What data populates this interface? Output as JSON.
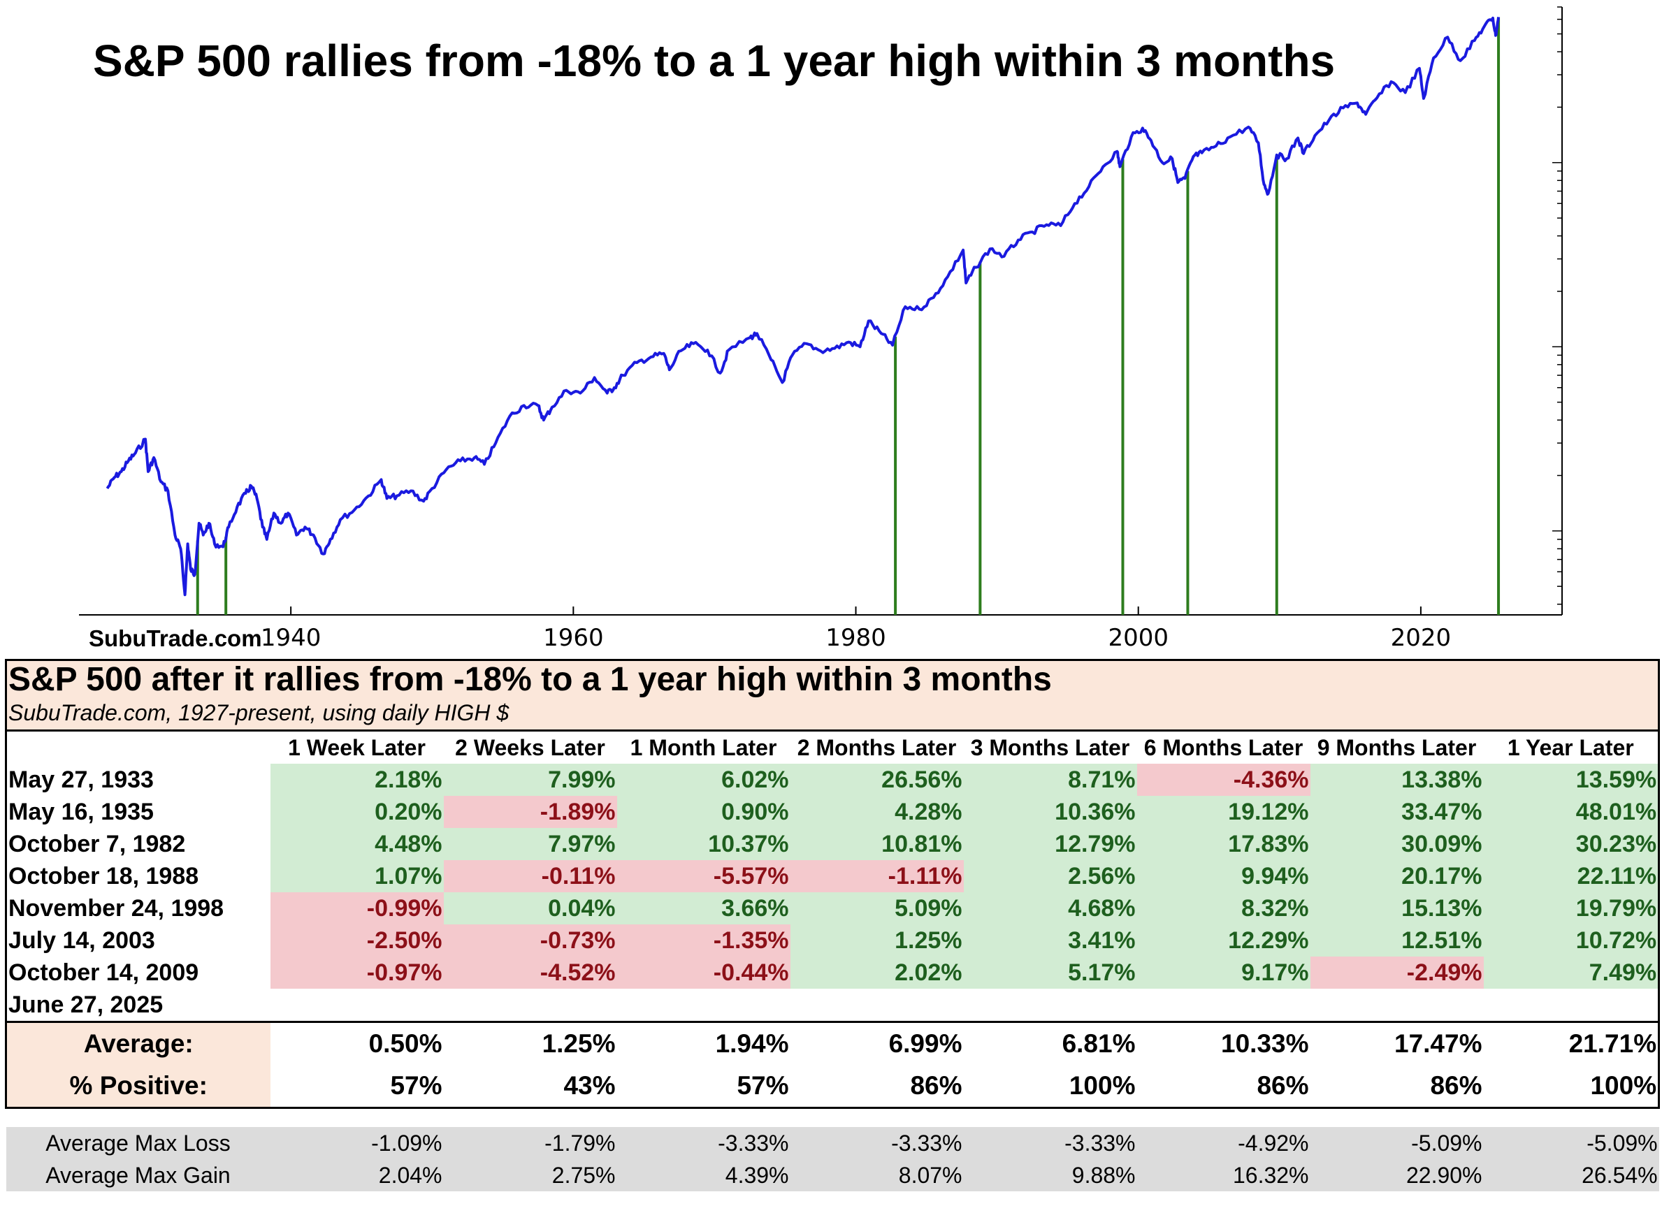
{
  "chart": {
    "title": "S&P 500 rallies from -18% to a 1 year high within 3 months",
    "watermark": "SubuTrade.com",
    "line_color": "#1a1adf",
    "signal_color": "#2e7d1e"
  },
  "chart_data": {
    "type": "line",
    "title": "S&P 500 rallies from -18% to a 1 year high within 3 months",
    "xlabel": "",
    "ylabel": "",
    "x_ticks": [
      1940,
      1960,
      1980,
      2000,
      2020
    ],
    "xlim": [
      1925.0,
      2030.0
    ],
    "y_scale": "log",
    "ylim": [
      3.5,
      7000
    ],
    "grid": false,
    "series": [
      {
        "points": [
          [
            1927.0,
            17.0
          ],
          [
            1927.5,
            19.5
          ],
          [
            1928.0,
            21.0
          ],
          [
            1928.5,
            24.0
          ],
          [
            1929.0,
            26.5
          ],
          [
            1929.7,
            31.5
          ],
          [
            1929.9,
            21.0
          ],
          [
            1930.3,
            25.0
          ],
          [
            1930.8,
            18.5
          ],
          [
            1931.3,
            16.5
          ],
          [
            1931.8,
            9.5
          ],
          [
            1932.2,
            8.0
          ],
          [
            1932.5,
            4.5
          ],
          [
            1932.7,
            8.5
          ],
          [
            1932.9,
            6.2
          ],
          [
            1933.2,
            5.8
          ],
          [
            1933.5,
            11.0
          ],
          [
            1933.8,
            9.5
          ],
          [
            1934.2,
            11.0
          ],
          [
            1934.6,
            8.5
          ],
          [
            1935.2,
            8.2
          ],
          [
            1935.6,
            10.5
          ],
          [
            1936.2,
            13.5
          ],
          [
            1936.8,
            16.0
          ],
          [
            1937.2,
            17.5
          ],
          [
            1937.6,
            15.0
          ],
          [
            1938.0,
            10.5
          ],
          [
            1938.3,
            9.0
          ],
          [
            1938.8,
            12.5
          ],
          [
            1939.3,
            11.0
          ],
          [
            1939.8,
            12.5
          ],
          [
            1940.4,
            9.5
          ],
          [
            1941.0,
            10.5
          ],
          [
            1941.6,
            9.5
          ],
          [
            1942.3,
            7.5
          ],
          [
            1942.8,
            9.0
          ],
          [
            1943.5,
            11.5
          ],
          [
            1944.5,
            13.0
          ],
          [
            1945.5,
            15.5
          ],
          [
            1946.4,
            19.0
          ],
          [
            1946.8,
            15.0
          ],
          [
            1947.5,
            15.5
          ],
          [
            1948.5,
            16.5
          ],
          [
            1949.4,
            14.5
          ],
          [
            1950.0,
            17.0
          ],
          [
            1951.0,
            21.5
          ],
          [
            1952.0,
            24.0
          ],
          [
            1953.0,
            25.0
          ],
          [
            1953.7,
            23.0
          ],
          [
            1954.5,
            30.0
          ],
          [
            1955.5,
            42.0
          ],
          [
            1956.5,
            48.0
          ],
          [
            1957.5,
            48.0
          ],
          [
            1957.9,
            40.0
          ],
          [
            1958.5,
            47.0
          ],
          [
            1959.5,
            58.0
          ],
          [
            1960.5,
            56.0
          ],
          [
            1961.5,
            68.0
          ],
          [
            1962.4,
            56.0
          ],
          [
            1962.9,
            60.0
          ],
          [
            1963.5,
            70.0
          ],
          [
            1964.5,
            82.0
          ],
          [
            1965.5,
            88.0
          ],
          [
            1966.4,
            92.0
          ],
          [
            1966.8,
            75.0
          ],
          [
            1967.6,
            95.0
          ],
          [
            1968.5,
            104.0
          ],
          [
            1969.5,
            96.0
          ],
          [
            1970.4,
            72.0
          ],
          [
            1971.0,
            96.0
          ],
          [
            1972.5,
            112.0
          ],
          [
            1973.0,
            118.0
          ],
          [
            1974.0,
            85.0
          ],
          [
            1974.8,
            64.0
          ],
          [
            1975.5,
            90.0
          ],
          [
            1976.5,
            104.0
          ],
          [
            1977.5,
            95.0
          ],
          [
            1978.5,
            98.0
          ],
          [
            1979.5,
            106.0
          ],
          [
            1980.3,
            100.0
          ],
          [
            1980.9,
            138.0
          ],
          [
            1981.8,
            118.0
          ],
          [
            1982.6,
            102.0
          ],
          [
            1983.5,
            165.0
          ],
          [
            1984.5,
            160.0
          ],
          [
            1985.5,
            185.0
          ],
          [
            1986.5,
            240.0
          ],
          [
            1987.6,
            335.0
          ],
          [
            1987.8,
            222.0
          ],
          [
            1988.5,
            270.0
          ],
          [
            1989.5,
            340.0
          ],
          [
            1990.5,
            310.0
          ],
          [
            1991.5,
            380.0
          ],
          [
            1992.5,
            420.0
          ],
          [
            1993.5,
            460.0
          ],
          [
            1994.5,
            455.0
          ],
          [
            1995.5,
            600.0
          ],
          [
            1996.5,
            740.0
          ],
          [
            1997.5,
            950.0
          ],
          [
            1998.5,
            1150.0
          ],
          [
            1998.7,
            950.0
          ],
          [
            1999.5,
            1380.0
          ],
          [
            2000.3,
            1540.0
          ],
          [
            2000.9,
            1320.0
          ],
          [
            2001.7,
            1000.0
          ],
          [
            2002.4,
            1050.0
          ],
          [
            2002.8,
            780.0
          ],
          [
            2003.3,
            820.0
          ],
          [
            2003.9,
            1080.0
          ],
          [
            2004.5,
            1130.0
          ],
          [
            2005.5,
            1230.0
          ],
          [
            2006.5,
            1380.0
          ],
          [
            2007.8,
            1560.0
          ],
          [
            2008.5,
            1280.0
          ],
          [
            2008.9,
            760.0
          ],
          [
            2009.2,
            680.0
          ],
          [
            2009.8,
            1100.0
          ],
          [
            2010.5,
            1050.0
          ],
          [
            2011.3,
            1360.0
          ],
          [
            2011.7,
            1120.0
          ],
          [
            2012.5,
            1400.0
          ],
          [
            2013.5,
            1700.0
          ],
          [
            2014.5,
            1980.0
          ],
          [
            2015.5,
            2110.0
          ],
          [
            2016.1,
            1830.0
          ],
          [
            2016.9,
            2250.0
          ],
          [
            2017.9,
            2750.0
          ],
          [
            2018.9,
            2400.0
          ],
          [
            2019.9,
            3250.0
          ],
          [
            2020.2,
            2230.0
          ],
          [
            2020.9,
            3700.0
          ],
          [
            2021.9,
            4800.0
          ],
          [
            2022.8,
            3580.0
          ],
          [
            2023.8,
            4600.0
          ],
          [
            2024.5,
            5500.0
          ],
          [
            2025.1,
            6100.0
          ],
          [
            2025.3,
            4900.0
          ],
          [
            2025.5,
            6170.0
          ]
        ]
      }
    ],
    "signal_years": [
      1933.4,
      1935.4,
      1982.8,
      1988.8,
      1998.9,
      2003.5,
      2009.8,
      2025.5
    ]
  },
  "table": {
    "title": "S&P 500 after it rallies from -18% to a 1 year high within 3 months",
    "subtitle": "SubuTrade.com, 1927-present, using daily HIGH $",
    "headers": [
      "1 Week Later",
      "2 Weeks Later",
      "1 Month Later",
      "2 Months Later",
      "3 Months Later",
      "6 Months Later",
      "9 Months Later",
      "1 Year Later"
    ],
    "rows": [
      {
        "date": "May 27, 1933",
        "values": [
          "2.18%",
          "7.99%",
          "6.02%",
          "26.56%",
          "8.71%",
          "-4.36%",
          "13.38%",
          "13.59%"
        ]
      },
      {
        "date": "May 16, 1935",
        "values": [
          "0.20%",
          "-1.89%",
          "0.90%",
          "4.28%",
          "10.36%",
          "19.12%",
          "33.47%",
          "48.01%"
        ]
      },
      {
        "date": "October 7, 1982",
        "values": [
          "4.48%",
          "7.97%",
          "10.37%",
          "10.81%",
          "12.79%",
          "17.83%",
          "30.09%",
          "30.23%"
        ]
      },
      {
        "date": "October 18, 1988",
        "values": [
          "1.07%",
          "-0.11%",
          "-5.57%",
          "-1.11%",
          "2.56%",
          "9.94%",
          "20.17%",
          "22.11%"
        ]
      },
      {
        "date": "November 24, 1998",
        "values": [
          "-0.99%",
          "0.04%",
          "3.66%",
          "5.09%",
          "4.68%",
          "8.32%",
          "15.13%",
          "19.79%"
        ]
      },
      {
        "date": "July 14, 2003",
        "values": [
          "-2.50%",
          "-0.73%",
          "-1.35%",
          "1.25%",
          "3.41%",
          "12.29%",
          "12.51%",
          "10.72%"
        ]
      },
      {
        "date": "October 14, 2009",
        "values": [
          "-0.97%",
          "-4.52%",
          "-0.44%",
          "2.02%",
          "5.17%",
          "9.17%",
          "-2.49%",
          "7.49%"
        ]
      },
      {
        "date": "June 27, 2025",
        "values": [
          "",
          "",
          "",
          "",
          "",
          "",
          "",
          ""
        ]
      }
    ],
    "average": {
      "label": "Average:",
      "values": [
        "0.50%",
        "1.25%",
        "1.94%",
        "6.99%",
        "6.81%",
        "10.33%",
        "17.47%",
        "21.71%"
      ]
    },
    "positive": {
      "label": "% Positive:",
      "values": [
        "57%",
        "43%",
        "57%",
        "86%",
        "100%",
        "86%",
        "86%",
        "100%"
      ]
    },
    "max_loss": {
      "label": "Average Max Loss",
      "values": [
        "-1.09%",
        "-1.79%",
        "-3.33%",
        "-3.33%",
        "-3.33%",
        "-4.92%",
        "-5.09%",
        "-5.09%"
      ]
    },
    "max_gain": {
      "label": "Average Max Gain",
      "values": [
        "2.04%",
        "2.75%",
        "4.39%",
        "8.07%",
        "9.88%",
        "16.32%",
        "22.90%",
        "26.54%"
      ]
    }
  }
}
